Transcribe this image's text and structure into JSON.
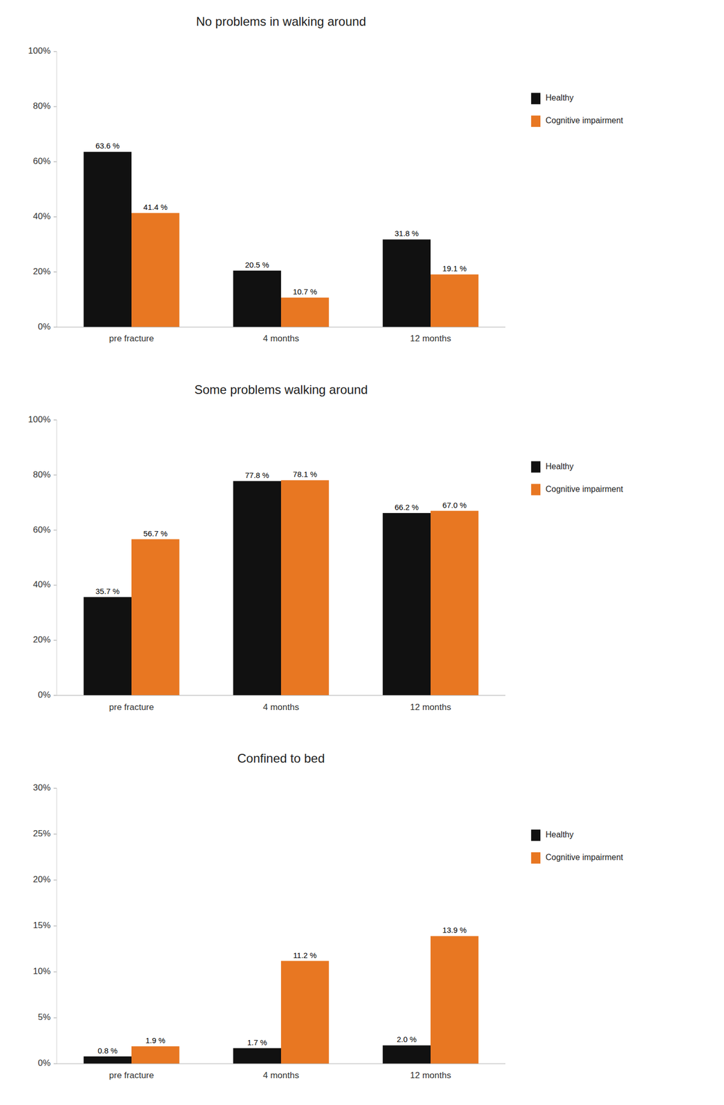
{
  "chart_data": [
    {
      "type": "bar",
      "title": "No problems in walking around",
      "categories": [
        "pre fracture",
        "4 months",
        "12 months"
      ],
      "series": [
        {
          "name": "Healthy",
          "color": "#111111",
          "values": [
            63.6,
            20.5,
            31.8
          ],
          "value_labels": [
            "63.6 %",
            "20.5 %",
            "31.8 %"
          ]
        },
        {
          "name": "Cognitive impairment",
          "color": "#E87722",
          "values": [
            41.4,
            10.7,
            19.1
          ],
          "value_labels": [
            "41.4 %",
            "10.7 %",
            "19.1 %"
          ]
        }
      ],
      "ylim": [
        0,
        100
      ],
      "yticks": [
        {
          "value": 0,
          "label": "0%"
        },
        {
          "value": 20,
          "label": "20%"
        },
        {
          "value": 40,
          "label": "40%"
        },
        {
          "value": 60,
          "label": "60%"
        },
        {
          "value": 80,
          "label": "80%"
        },
        {
          "value": 100,
          "label": "100%"
        }
      ],
      "grid": false,
      "legend": "right",
      "data_labels": true
    },
    {
      "type": "bar",
      "title": "Some problems walking around",
      "categories": [
        "pre fracture",
        "4 months",
        "12 months"
      ],
      "series": [
        {
          "name": "Healthy",
          "color": "#111111",
          "values": [
            35.7,
            77.8,
            66.2
          ],
          "value_labels": [
            "35.7 %",
            "77.8 %",
            "66.2 %"
          ]
        },
        {
          "name": "Cognitive impairment",
          "color": "#E87722",
          "values": [
            56.7,
            78.1,
            67.0
          ],
          "value_labels": [
            "56.7 %",
            "78.1 %",
            "67.0 %"
          ]
        }
      ],
      "ylim": [
        0,
        100
      ],
      "yticks": [
        {
          "value": 0,
          "label": "0%"
        },
        {
          "value": 20,
          "label": "20%"
        },
        {
          "value": 40,
          "label": "40%"
        },
        {
          "value": 60,
          "label": "60%"
        },
        {
          "value": 80,
          "label": "80%"
        },
        {
          "value": 100,
          "label": "100%"
        }
      ],
      "grid": false,
      "legend": "right",
      "data_labels": true
    },
    {
      "type": "bar",
      "title": "Confined to bed",
      "categories": [
        "pre fracture",
        "4 months",
        "12 months"
      ],
      "series": [
        {
          "name": "Healthy",
          "color": "#111111",
          "values": [
            0.8,
            1.7,
            2.0
          ],
          "value_labels": [
            "0.8 %",
            "1.7 %",
            "2.0 %"
          ]
        },
        {
          "name": "Cognitive impairment",
          "color": "#E87722",
          "values": [
            1.9,
            11.2,
            13.9
          ],
          "value_labels": [
            "1.9 %",
            "11.2 %",
            "13.9 %"
          ]
        }
      ],
      "ylim": [
        0,
        30
      ],
      "yticks": [
        {
          "value": 0,
          "label": "0%"
        },
        {
          "value": 5,
          "label": "5%"
        },
        {
          "value": 10,
          "label": "10%"
        },
        {
          "value": 15,
          "label": "15%"
        },
        {
          "value": 20,
          "label": "20%"
        },
        {
          "value": 25,
          "label": "25%"
        },
        {
          "value": 30,
          "label": "30%"
        }
      ],
      "grid": false,
      "legend": "right",
      "data_labels": true
    }
  ]
}
